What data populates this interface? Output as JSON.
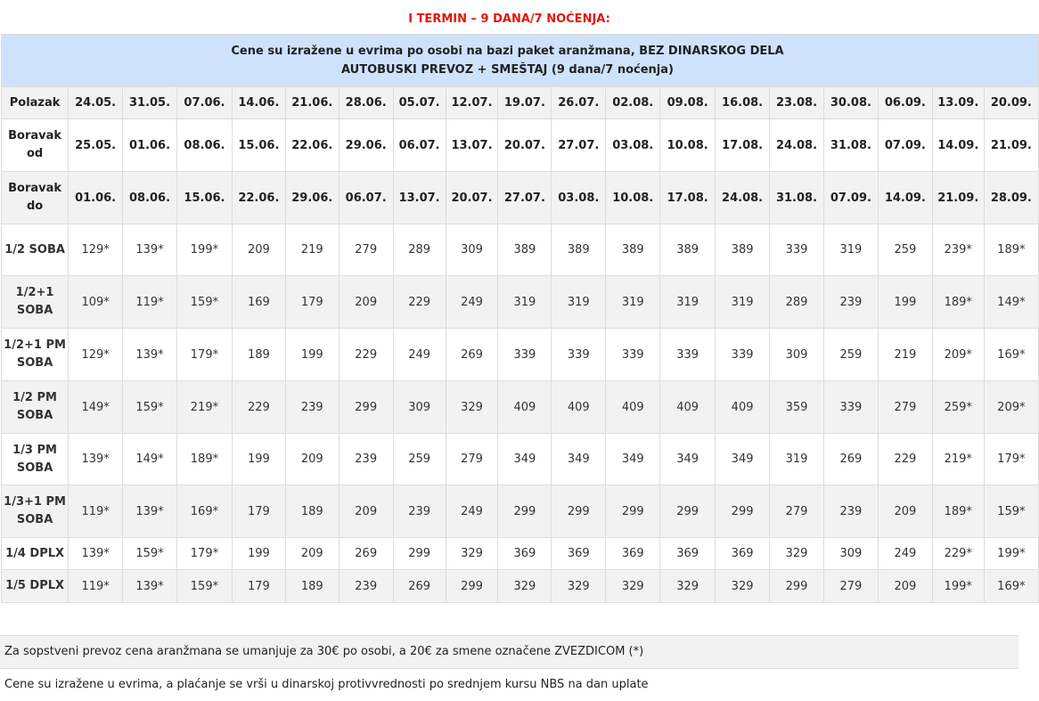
{
  "title": "I TERMIN – 9 DANA/7 NOĆENJA:",
  "header_line1": "Cene su izražene u evrima po osobi na bazi paket aranžmana, BEZ DINARSKOG DELA",
  "header_line2": "AUTOBUSKI PREVOZ + SMEŠTAJ (9 dana/7 noćenja)",
  "rows": [
    {
      "label": "Polazak",
      "type": "date",
      "h": 36,
      "cells": [
        "24.05.",
        "31.05.",
        "07.06.",
        "14.06.",
        "21.06.",
        "28.06.",
        "05.07.",
        "12.07.",
        "19.07.",
        "26.07.",
        "02.08.",
        "09.08.",
        "16.08.",
        "23.08.",
        "30.08.",
        "06.09.",
        "13.09.",
        "20.09."
      ]
    },
    {
      "label": "Boravak od",
      "type": "date",
      "h": 59,
      "cells": [
        "25.05.",
        "01.06.",
        "08.06.",
        "15.06.",
        "22.06.",
        "29.06.",
        "06.07.",
        "13.07.",
        "20.07.",
        "27.07.",
        "03.08.",
        "10.08.",
        "17.08.",
        "24.08.",
        "31.08.",
        "07.09.",
        "14.09.",
        "21.09."
      ]
    },
    {
      "label": "Boravak do",
      "type": "date",
      "h": 59,
      "cells": [
        "01.06.",
        "08.06.",
        "15.06.",
        "22.06.",
        "29.06.",
        "06.07.",
        "13.07.",
        "20.07.",
        "27.07.",
        "03.08.",
        "10.08.",
        "17.08.",
        "24.08.",
        "31.08.",
        "07.09.",
        "14.09.",
        "21.09.",
        "28.09."
      ]
    },
    {
      "label": "1/2 SOBA",
      "type": "price",
      "h": 58,
      "cells": [
        "129*",
        "139*",
        "199*",
        "209",
        "219",
        "279",
        "289",
        "309",
        "389",
        "389",
        "389",
        "389",
        "389",
        "339",
        "319",
        "259",
        "239*",
        "189*"
      ]
    },
    {
      "label": "1/2+1 SOBA",
      "type": "price",
      "h": 59,
      "cells": [
        "109*",
        "119*",
        "159*",
        "169",
        "179",
        "209",
        "229",
        "249",
        "319",
        "319",
        "319",
        "319",
        "319",
        "289",
        "239",
        "199",
        "189*",
        "149*"
      ]
    },
    {
      "label": "1/2+1 PM SOBA",
      "type": "price",
      "h": 59,
      "cells": [
        "129*",
        "139*",
        "179*",
        "189",
        "199",
        "229",
        "249",
        "269",
        "339",
        "339",
        "339",
        "339",
        "339",
        "309",
        "259",
        "219",
        "209*",
        "169*"
      ]
    },
    {
      "label": "1/2 PM SOBA",
      "type": "price",
      "h": 59,
      "cells": [
        "149*",
        "159*",
        "219*",
        "229",
        "239",
        "299",
        "309",
        "329",
        "409",
        "409",
        "409",
        "409",
        "409",
        "359",
        "339",
        "279",
        "259*",
        "209*"
      ]
    },
    {
      "label": "1/3 PM SOBA",
      "type": "price",
      "h": 58,
      "cells": [
        "139*",
        "149*",
        "189*",
        "199",
        "209",
        "239",
        "259",
        "279",
        "349",
        "349",
        "349",
        "349",
        "349",
        "319",
        "269",
        "229",
        "219*",
        "179*"
      ]
    },
    {
      "label": "1/3+1 PM SOBA",
      "type": "price",
      "h": 59,
      "cells": [
        "119*",
        "139*",
        "169*",
        "179",
        "189",
        "209",
        "239",
        "249",
        "299",
        "299",
        "299",
        "299",
        "299",
        "279",
        "239",
        "209",
        "189*",
        "159*"
      ]
    },
    {
      "label": "1/4 DPLX",
      "type": "price",
      "h": 36,
      "cells": [
        "139*",
        "159*",
        "179*",
        "199",
        "209",
        "269",
        "299",
        "329",
        "369",
        "369",
        "369",
        "369",
        "369",
        "329",
        "309",
        "249",
        "229*",
        "199*"
      ]
    },
    {
      "label": "1/5 DPLX",
      "type": "price",
      "h": 37,
      "cells": [
        "119*",
        "139*",
        "159*",
        "179",
        "189",
        "239",
        "269",
        "299",
        "329",
        "329",
        "329",
        "329",
        "329",
        "299",
        "279",
        "209",
        "199*",
        "169*"
      ]
    }
  ],
  "footer": [
    "Za sopstveni prevoz cena aranžmana se umanjuje za 30€ po osobi, a 20€ za smene označene ZVEZDICOM (*)",
    "Cene su izražene u evrima, a plaćanje se vrši u dinarskoj protivvrednosti po srednjem kursu NBS na dan uplate"
  ]
}
